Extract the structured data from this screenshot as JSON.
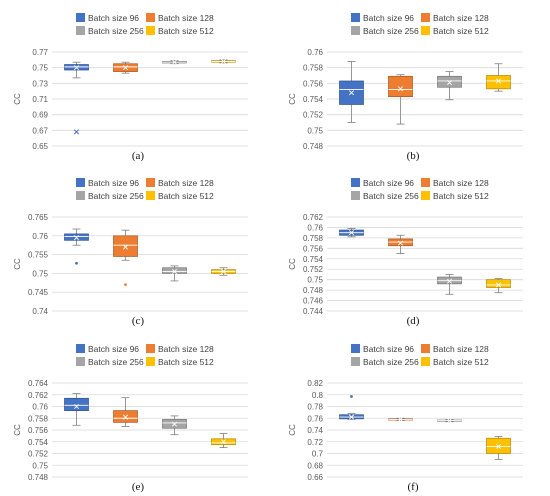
{
  "colors": {
    "Batch size 96": "#4472c4",
    "Batch size 128": "#ed7d31",
    "Batch size 256": "#a5a5a5",
    "Batch size 512": "#ffc000"
  },
  "chart_data": [
    {
      "type": "box",
      "panel_label": "(a)",
      "ylabel": "CC",
      "ylim": [
        0.65,
        0.77
      ],
      "yticks": [
        "0.65",
        "0.67",
        "0.69",
        "0.71",
        "0.73",
        "0.75",
        "0.77"
      ],
      "grid": true,
      "legend": "top",
      "series": [
        {
          "name": "Batch size 96",
          "min": 0.737,
          "q1": 0.747,
          "median": 0.751,
          "q3": 0.754,
          "max": 0.757,
          "mean": 0.75,
          "outliers": [
            0.668
          ]
        },
        {
          "name": "Batch size 128",
          "min": 0.743,
          "q1": 0.745,
          "median": 0.751,
          "q3": 0.755,
          "max": 0.757,
          "mean": 0.75,
          "outliers": []
        },
        {
          "name": "Batch size 256",
          "min": 0.755,
          "q1": 0.756,
          "median": 0.757,
          "q3": 0.758,
          "max": 0.759,
          "mean": 0.757,
          "outliers": []
        },
        {
          "name": "Batch size 512",
          "min": 0.756,
          "q1": 0.757,
          "median": 0.758,
          "q3": 0.759,
          "max": 0.76,
          "mean": 0.758,
          "outliers": []
        }
      ]
    },
    {
      "type": "box",
      "panel_label": "(b)",
      "ylabel": "CC",
      "ylim": [
        0.748,
        0.76
      ],
      "yticks": [
        "0.748",
        "0.75",
        "0.752",
        "0.754",
        "0.756",
        "0.758",
        "0.76"
      ],
      "grid": true,
      "legend": "top",
      "series": [
        {
          "name": "Batch size 96",
          "min": 0.751,
          "q1": 0.7533,
          "median": 0.7552,
          "q3": 0.7563,
          "max": 0.7588,
          "mean": 0.7548,
          "outliers": []
        },
        {
          "name": "Batch size 128",
          "min": 0.7508,
          "q1": 0.7543,
          "median": 0.7552,
          "q3": 0.7569,
          "max": 0.7571,
          "mean": 0.7553,
          "outliers": []
        },
        {
          "name": "Batch size 256",
          "min": 0.7539,
          "q1": 0.7555,
          "median": 0.7563,
          "q3": 0.7569,
          "max": 0.7575,
          "mean": 0.7561,
          "outliers": []
        },
        {
          "name": "Batch size 512",
          "min": 0.755,
          "q1": 0.7553,
          "median": 0.7563,
          "q3": 0.757,
          "max": 0.7585,
          "mean": 0.7563,
          "outliers": []
        }
      ]
    },
    {
      "type": "box",
      "panel_label": "(c)",
      "ylabel": "CC",
      "ylim": [
        0.74,
        0.765
      ],
      "yticks": [
        "0.74",
        "0.745",
        "0.75",
        "0.755",
        "0.76",
        "0.765"
      ],
      "grid": true,
      "legend": "top",
      "series": [
        {
          "name": "Batch size 96",
          "min": 0.7575,
          "q1": 0.7588,
          "median": 0.7598,
          "q3": 0.7605,
          "max": 0.7618,
          "mean": 0.7595,
          "outliers": [
            0.7527
          ]
        },
        {
          "name": "Batch size 128",
          "min": 0.7535,
          "q1": 0.7545,
          "median": 0.7575,
          "q3": 0.76,
          "max": 0.7615,
          "mean": 0.757,
          "outliers": [
            0.747
          ]
        },
        {
          "name": "Batch size 256",
          "min": 0.748,
          "q1": 0.75,
          "median": 0.7505,
          "q3": 0.7515,
          "max": 0.752,
          "mean": 0.7505,
          "outliers": []
        },
        {
          "name": "Batch size 512",
          "min": 0.7495,
          "q1": 0.75,
          "median": 0.7505,
          "q3": 0.751,
          "max": 0.7515,
          "mean": 0.7505,
          "outliers": []
        }
      ]
    },
    {
      "type": "box",
      "panel_label": "(d)",
      "ylabel": "CC",
      "ylim": [
        0.744,
        0.762
      ],
      "yticks": [
        "0.744",
        "0.746",
        "0.748",
        "0.75",
        "0.752",
        "0.754",
        "0.756",
        "0.758",
        "0.76",
        "0.762"
      ],
      "grid": true,
      "legend": "top",
      "series": [
        {
          "name": "Batch size 96",
          "min": 0.7582,
          "q1": 0.7585,
          "median": 0.759,
          "q3": 0.7595,
          "max": 0.7598,
          "mean": 0.759,
          "outliers": []
        },
        {
          "name": "Batch size 128",
          "min": 0.755,
          "q1": 0.7565,
          "median": 0.7572,
          "q3": 0.7578,
          "max": 0.7585,
          "mean": 0.757,
          "outliers": []
        },
        {
          "name": "Batch size 256",
          "min": 0.7472,
          "q1": 0.7492,
          "median": 0.7498,
          "q3": 0.7505,
          "max": 0.751,
          "mean": 0.7497,
          "outliers": []
        },
        {
          "name": "Batch size 512",
          "min": 0.7475,
          "q1": 0.7485,
          "median": 0.749,
          "q3": 0.75,
          "max": 0.7502,
          "mean": 0.749,
          "outliers": []
        }
      ]
    },
    {
      "type": "box",
      "panel_label": "(e)",
      "ylabel": "CC",
      "ylim": [
        0.748,
        0.764
      ],
      "yticks": [
        "0.748",
        "0.75",
        "0.752",
        "0.754",
        "0.756",
        "0.758",
        "0.76",
        "0.762",
        "0.764"
      ],
      "grid": true,
      "legend": "top",
      "series": [
        {
          "name": "Batch size 96",
          "min": 0.7568,
          "q1": 0.7593,
          "median": 0.7602,
          "q3": 0.7614,
          "max": 0.7622,
          "mean": 0.76,
          "outliers": []
        },
        {
          "name": "Batch size 128",
          "min": 0.7566,
          "q1": 0.7573,
          "median": 0.758,
          "q3": 0.7593,
          "max": 0.7615,
          "mean": 0.7582,
          "outliers": []
        },
        {
          "name": "Batch size 256",
          "min": 0.7552,
          "q1": 0.7563,
          "median": 0.7572,
          "q3": 0.7578,
          "max": 0.7584,
          "mean": 0.757,
          "outliers": []
        },
        {
          "name": "Batch size 512",
          "min": 0.753,
          "q1": 0.7535,
          "median": 0.7538,
          "q3": 0.7545,
          "max": 0.7554,
          "mean": 0.754,
          "outliers": []
        }
      ]
    },
    {
      "type": "box",
      "panel_label": "(f)",
      "ylabel": "CC",
      "ylim": [
        0.66,
        0.82
      ],
      "yticks": [
        "0.66",
        "0.68",
        "0.7",
        "0.72",
        "0.74",
        "0.76",
        "0.78",
        "0.8",
        "0.82"
      ],
      "grid": true,
      "legend": "top",
      "series": [
        {
          "name": "Batch size 96",
          "min": 0.758,
          "q1": 0.759,
          "median": 0.762,
          "q3": 0.766,
          "max": 0.768,
          "mean": 0.762,
          "outliers": [
            0.797
          ]
        },
        {
          "name": "Batch size 128",
          "min": 0.756,
          "q1": 0.757,
          "median": 0.758,
          "q3": 0.759,
          "max": 0.76,
          "mean": 0.758,
          "outliers": []
        },
        {
          "name": "Batch size 256",
          "min": 0.754,
          "q1": 0.755,
          "median": 0.756,
          "q3": 0.757,
          "max": 0.758,
          "mean": 0.756,
          "outliers": []
        },
        {
          "name": "Batch size 512",
          "min": 0.69,
          "q1": 0.7,
          "median": 0.712,
          "q3": 0.726,
          "max": 0.729,
          "mean": 0.712,
          "outliers": []
        }
      ]
    }
  ]
}
